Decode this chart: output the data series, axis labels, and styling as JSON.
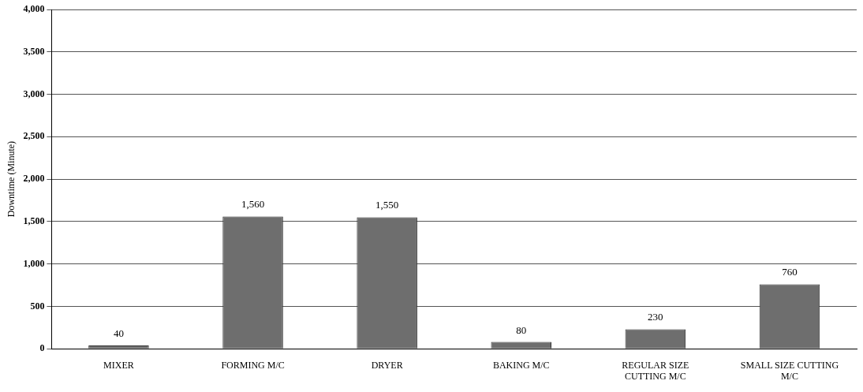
{
  "chart_data": {
    "type": "bar",
    "ylabel": "Downtime (Minute)",
    "categories": [
      "MIXER",
      "FORMING M/C",
      "DRYER",
      "BAKING M/C",
      "REGULAR SIZE CUTTING M/C",
      "SMALL SIZE CUTTING M/C"
    ],
    "values": [
      40,
      1560,
      1550,
      80,
      230,
      760
    ],
    "value_labels": [
      "40",
      "1,560",
      "1,550",
      "80",
      "230",
      "760"
    ],
    "color": "#6e6e6e",
    "ylim": [
      0,
      4000
    ],
    "yticks": [
      0,
      500,
      {
        "value": 1000,
        "label": "1,000"
      },
      {
        "value": 1500,
        "label": "1,500"
      },
      {
        "value": 2000,
        "label": "2,000"
      },
      {
        "value": 2500,
        "label": "2,500"
      },
      {
        "value": 3000,
        "label": "3,000"
      },
      {
        "value": 3500,
        "label": "3,500"
      },
      {
        "value": 4000,
        "label": "4,000"
      }
    ],
    "grid": "y"
  }
}
